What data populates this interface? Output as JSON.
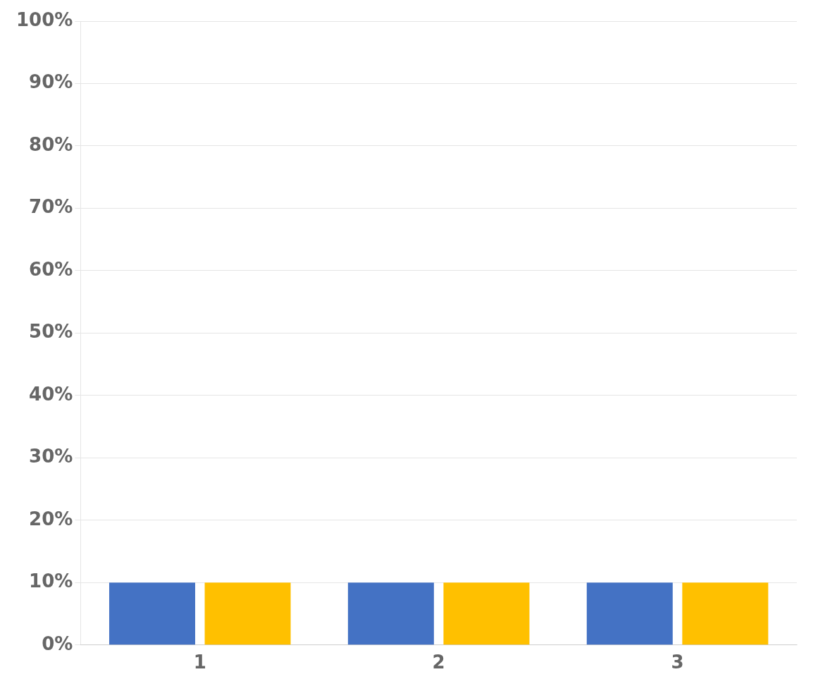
{
  "chart_data": {
    "type": "bar",
    "categories": [
      "1",
      "2",
      "3"
    ],
    "series": [
      {
        "color": "#4472C4",
        "values": [
          10,
          10,
          10
        ]
      },
      {
        "color": "#FFC000",
        "values": [
          10,
          10,
          10
        ]
      }
    ],
    "ylim": [
      0,
      100
    ],
    "yticks": [
      {
        "value": 0,
        "label": "0%"
      },
      {
        "value": 10,
        "label": "10%"
      },
      {
        "value": 20,
        "label": "20%"
      },
      {
        "value": 30,
        "label": "30%"
      },
      {
        "value": 40,
        "label": "40%"
      },
      {
        "value": 50,
        "label": "50%"
      },
      {
        "value": 60,
        "label": "60%"
      },
      {
        "value": 70,
        "label": "70%"
      },
      {
        "value": 80,
        "label": "80%"
      },
      {
        "value": 90,
        "label": "90%"
      },
      {
        "value": 100,
        "label": "100%"
      }
    ],
    "grid": true,
    "legend": false
  }
}
